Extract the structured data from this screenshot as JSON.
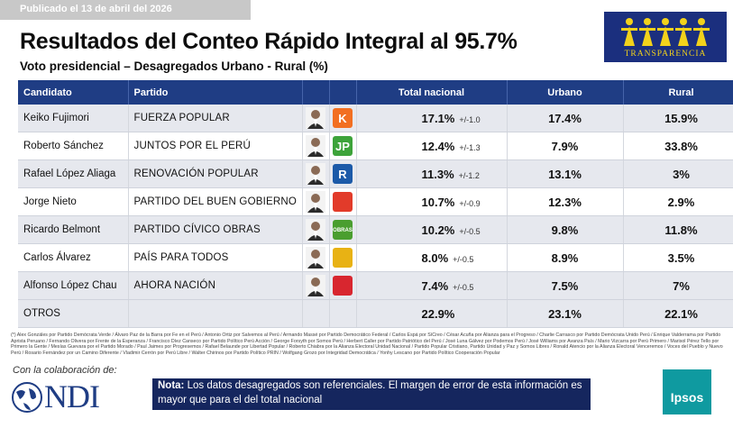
{
  "published": "Publicado el 13 de abril del 2026",
  "title": "Resultados del Conteo Rápido Integral al 95.7%",
  "subtitle": "Voto presidencial – Desagregados Urbano - Rural (%)",
  "transparencia_logo": "TRANSPARENCIA",
  "table": {
    "headers": {
      "candidato": "Candidato",
      "partido": "Partido",
      "total": "Total nacional",
      "urbano": "Urbano",
      "rural": "Rural"
    },
    "rows": [
      {
        "candidato": "Keiko Fujimori",
        "partido": "FUERZA POPULAR",
        "total": "17.1%",
        "moe": "+/-1.0",
        "urbano": "17.4%",
        "rural": "15.9%",
        "logo_color": "#f26f21",
        "logo_letter": "K"
      },
      {
        "candidato": "Roberto Sánchez",
        "partido": "JUNTOS POR EL PERÚ",
        "total": "12.4%",
        "moe": "+/-1.3",
        "urbano": "7.9%",
        "rural": "33.8%",
        "logo_color": "#3da33a",
        "logo_letter": "JP"
      },
      {
        "candidato": "Rafael López Aliaga",
        "partido": "RENOVACIÓN POPULAR",
        "total": "11.3%",
        "moe": "+/-1.2",
        "urbano": "13.1%",
        "rural": "3%",
        "logo_color": "#1c5aa8",
        "logo_letter": "R"
      },
      {
        "candidato": "Jorge Nieto",
        "partido": "PARTIDO DEL BUEN GOBIERNO",
        "total": "10.7%",
        "moe": "+/-0.9",
        "urbano": "12.3%",
        "rural": "2.9%",
        "logo_color": "#e23b2a",
        "logo_letter": ""
      },
      {
        "candidato": "Ricardo Belmont",
        "partido": "PARTIDO CÍVICO OBRAS",
        "total": "10.2%",
        "moe": "+/-0.5",
        "urbano": "9.8%",
        "rural": "11.8%",
        "logo_color": "#4a9e2f",
        "logo_letter": "OBRAS"
      },
      {
        "candidato": "Carlos Álvarez",
        "partido": "PAÍS PARA TODOS",
        "total": "8.0%",
        "moe": "+/-0.5",
        "urbano": "8.9%",
        "rural": "3.5%",
        "logo_color": "#e8b214",
        "logo_letter": ""
      },
      {
        "candidato": "Alfonso López Chau",
        "partido": "AHORA NACIÓN",
        "total": "7.4%",
        "moe": "+/-0.5",
        "urbano": "7.5%",
        "rural": "7%",
        "logo_color": "#d8262f",
        "logo_letter": ""
      }
    ],
    "otros": {
      "candidato": "OTROS",
      "total": "22.9%",
      "urbano": "23.1%",
      "rural": "22.1%"
    }
  },
  "footnote": "(*) Alex Gonzáles por Partido Demócrata Verde / Álvaro Paz de la Barra por Fe en el Perú / Antonio Ortiz por Salvemos al Perú / Armando Massé por Partido Democrático Federal / Carlos Espá por SíCreo / César Acuña por Alianza para el Progreso / Charlie Carrasco por Partido Demócrata Unido Perú / Enrique Valderrama por Partido Aprista Peruano / Fernando Olivera por Frente de la Esperanza / Francisco Díez Canseco por Partido Político Perú Acción / George Forsyth por Somos Perú / Herbert Caller por Partido Patriótico del Perú / José Luna Gálvez por Podemos Perú / José Williams por Avanza País / Mario Vizcarra por Perú Primero / Marisol Pérez Tello por Primero la Gente / Mesías Guevara por el Partido Morado / Paul Jaimes por Progresemos / Rafael Belaunde por Libertad Popular / Roberto Chiabra por la Alianza Electoral Unidad Nacional / Partido Popular Cristiano, Partido Unidad y Paz y Somos Libres / Ronald Atencio por la Alianza Electoral Venceremos / Voces del Pueblo y Nuevo Perú / Rosario Fernández por un Camino Diferente / Vladimir Cerrón por Perú Libre / Walter Chirinos por Partido Político PRIN / Wolfgang Grozo por Integridad Democrática / Yonhy Lescano por Partido Político Cooperación Popular",
  "collab": "Con la colaboración de:",
  "ndi_logo": "NDI",
  "note": {
    "label": "Nota:",
    "text": " Los datos desagregados son referenciales. El margen de error de esta información es mayor que para el del total nacional"
  },
  "ipsos_logo": "Ipsos"
}
